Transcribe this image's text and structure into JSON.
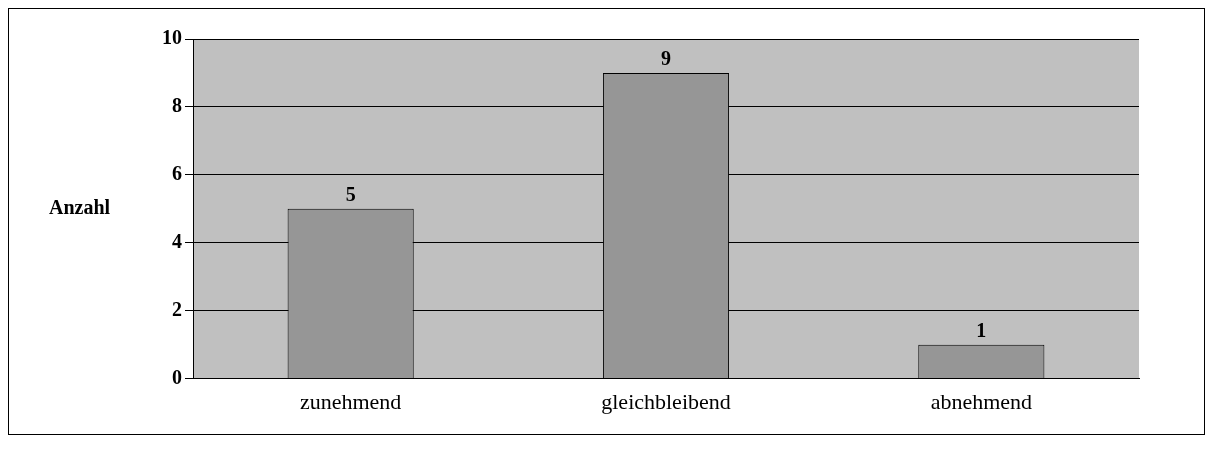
{
  "chart_data": {
    "type": "bar",
    "ylabel": "Anzahl",
    "categories": [
      "zunehmend",
      "gleichbleibend",
      "abnehmend"
    ],
    "values": [
      5,
      9,
      1
    ],
    "color": "#969696",
    "ylim": [
      0,
      10
    ],
    "yticks": [
      0,
      2,
      4,
      6,
      8,
      10
    ],
    "grid": "y",
    "data_labels": true,
    "legend": false
  }
}
